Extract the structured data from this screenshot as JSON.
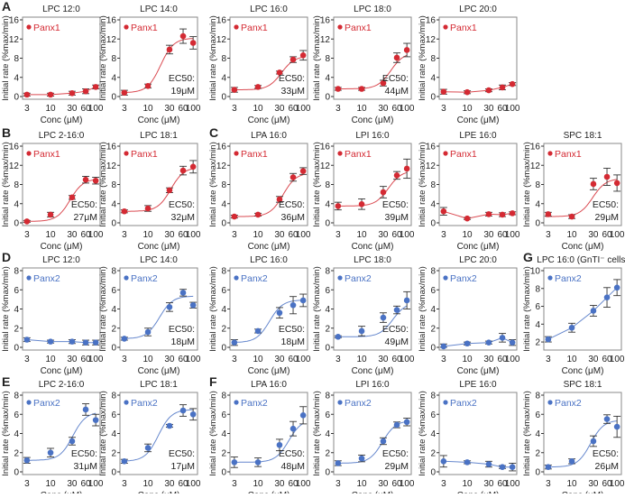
{
  "colors": {
    "panx1": "#d42a33",
    "panx2": "#4a72c4",
    "errorbar": "#333333",
    "frame": "#8a8a8a"
  },
  "chart_data": [
    {
      "type": "line",
      "label": "A",
      "title": "LPC 12:0",
      "series": "Panx1",
      "x": [
        3,
        10,
        30,
        60,
        100
      ],
      "y": [
        0.4,
        0.4,
        0.7,
        1.1,
        2.0
      ],
      "err": [
        0.3,
        0.3,
        0.4,
        0.5,
        0.4
      ],
      "ec50": null,
      "xlabel": "Conc (μM)",
      "ylabel": "Initial rate (%max/min)",
      "ylim": [
        0,
        16
      ],
      "yticks": [
        "0",
        "4",
        "8",
        "12",
        "16"
      ],
      "xticks": [
        "3",
        "10",
        "30",
        "60",
        "100"
      ],
      "xscale": "log"
    },
    {
      "type": "line",
      "title": "LPC 14:0",
      "series": "Panx1",
      "x": [
        3,
        10,
        30,
        60,
        100
      ],
      "y": [
        0.8,
        2.2,
        9.8,
        12.6,
        11.2
      ],
      "err": [
        0.5,
        0.4,
        0.9,
        1.5,
        1.3
      ],
      "ec50": [
        "EC50:",
        "19μM"
      ],
      "xlabel": "Conc (μM)",
      "ylabel": "Initial rate (%max/min)",
      "ylim": [
        0,
        16
      ],
      "yticks": [
        "0",
        "4",
        "8",
        "12",
        "16"
      ],
      "xticks": [
        "3",
        "10",
        "30",
        "60",
        "100"
      ],
      "xscale": "log"
    },
    {
      "type": "line",
      "title": "LPC 16:0",
      "series": "Panx1",
      "x": [
        3,
        10,
        30,
        60,
        100
      ],
      "y": [
        1.4,
        2.0,
        5.0,
        7.7,
        8.6
      ],
      "err": [
        0.5,
        0.3,
        0.3,
        0.6,
        1.0
      ],
      "ec50": [
        "EC50:",
        "33μM"
      ],
      "xlabel": "Conc (μM)",
      "ylabel": "Initial rate (%max/min)",
      "ylim": [
        0,
        16
      ],
      "yticks": [
        "0",
        "4",
        "8",
        "12",
        "16"
      ],
      "xticks": [
        "3",
        "10",
        "30",
        "60",
        "100"
      ],
      "xscale": "log"
    },
    {
      "type": "line",
      "title": "LPC 18:0",
      "series": "Panx1",
      "x": [
        3,
        10,
        30,
        60,
        100
      ],
      "y": [
        1.6,
        1.6,
        2.8,
        8.1,
        9.7
      ],
      "err": [
        0.3,
        0.3,
        0.6,
        1.0,
        1.4
      ],
      "ec50": [
        "EC50:",
        "44μM"
      ],
      "xlabel": "Conc (μM)",
      "ylabel": "Initial rate (%max/min)",
      "ylim": [
        0,
        16
      ],
      "yticks": [
        "0",
        "4",
        "8",
        "12",
        "16"
      ],
      "xticks": [
        "3",
        "10",
        "30",
        "60",
        "100"
      ],
      "xscale": "log"
    },
    {
      "type": "line",
      "title": "LPC 20:0",
      "series": "Panx1",
      "x": [
        3,
        10,
        30,
        60,
        100
      ],
      "y": [
        1.0,
        0.9,
        1.3,
        1.9,
        2.6
      ],
      "err": [
        0.5,
        0.3,
        0.3,
        0.5,
        0.3
      ],
      "ec50": null,
      "xlabel": "Conc (μM)",
      "ylabel": "Initial rate (%max/min)",
      "ylim": [
        0,
        16
      ],
      "yticks": [
        "0",
        "4",
        "8",
        "12",
        "16"
      ],
      "xticks": [
        "3",
        "10",
        "30",
        "60",
        "100"
      ],
      "xscale": "log"
    },
    {
      "type": "line",
      "label": "B",
      "title": "LPC 2-16:0",
      "series": "Panx1",
      "x": [
        3,
        10,
        30,
        60,
        100
      ],
      "y": [
        0.3,
        1.7,
        5.3,
        9.0,
        8.8
      ],
      "err": [
        0.2,
        0.5,
        0.4,
        0.7,
        0.7
      ],
      "ec50": [
        "EC50:",
        "27μM"
      ],
      "xlabel": "Conc (μM)",
      "ylabel": "Initial rate (%max/min)",
      "ylim": [
        0,
        16
      ],
      "yticks": [
        "0",
        "4",
        "8",
        "12",
        "16"
      ],
      "xticks": [
        "3",
        "10",
        "30",
        "60",
        "100"
      ],
      "xscale": "log"
    },
    {
      "type": "line",
      "title": "LPC 18:1",
      "series": "Panx1",
      "x": [
        3,
        10,
        30,
        60,
        100
      ],
      "y": [
        2.4,
        3.0,
        6.8,
        10.9,
        11.7
      ],
      "err": [
        0.3,
        0.6,
        0.5,
        0.9,
        1.3
      ],
      "ec50": [
        "EC50:",
        "32μM"
      ],
      "xlabel": "Conc (μM)",
      "ylabel": "Initial rate (%max/min)",
      "ylim": [
        0,
        16
      ],
      "yticks": [
        "0",
        "4",
        "8",
        "12",
        "16"
      ],
      "xticks": [
        "3",
        "10",
        "30",
        "60",
        "100"
      ],
      "xscale": "log"
    },
    {
      "type": "line",
      "label": "C",
      "title": "LPA 16:0",
      "series": "Panx1",
      "x": [
        3,
        10,
        30,
        60,
        100
      ],
      "y": [
        1.3,
        1.7,
        4.9,
        9.5,
        10.8
      ],
      "err": [
        0.3,
        0.3,
        0.6,
        0.8,
        0.7
      ],
      "ec50": [
        "EC50:",
        "36μM"
      ],
      "xlabel": "Conc (μM)",
      "ylabel": "Initial rate (%max/min)",
      "ylim": [
        0,
        16
      ],
      "yticks": [
        "0",
        "4",
        "8",
        "12",
        "16"
      ],
      "xticks": [
        "3",
        "10",
        "30",
        "60",
        "100"
      ],
      "xscale": "log"
    },
    {
      "type": "line",
      "title": "LPI 16:0",
      "series": "Panx1",
      "x": [
        3,
        10,
        30,
        60,
        100
      ],
      "y": [
        3.5,
        3.9,
        6.4,
        9.9,
        11.3
      ],
      "err": [
        0.8,
        1.1,
        1.2,
        0.8,
        2.0
      ],
      "ec50": [
        "EC50:",
        "39μM"
      ],
      "xlabel": "Conc (μM)",
      "ylabel": "Initial rate (%max/min)",
      "ylim": [
        0,
        16
      ],
      "yticks": [
        "0",
        "4",
        "8",
        "12",
        "16"
      ],
      "xticks": [
        "3",
        "10",
        "30",
        "60",
        "100"
      ],
      "xscale": "log"
    },
    {
      "type": "line",
      "title": "LPE 16:0",
      "series": "Panx1",
      "x": [
        3,
        10,
        30,
        60,
        100
      ],
      "y": [
        2.4,
        0.9,
        1.8,
        1.7,
        2.0
      ],
      "err": [
        0.8,
        0.2,
        0.4,
        0.4,
        0.3
      ],
      "ec50": null,
      "xlabel": "Conc (μM)",
      "ylabel": "Initial rate (%max/min)",
      "ylim": [
        0,
        16
      ],
      "yticks": [
        "0",
        "4",
        "8",
        "12",
        "16"
      ],
      "xticks": [
        "3",
        "10",
        "30",
        "60",
        "100"
      ],
      "xscale": "log"
    },
    {
      "type": "line",
      "title": "SPC 18:1",
      "series": "Panx1",
      "x": [
        3,
        10,
        30,
        60,
        100
      ],
      "y": [
        1.8,
        1.3,
        8.1,
        9.6,
        8.3
      ],
      "err": [
        0.4,
        0.4,
        1.2,
        1.8,
        1.7
      ],
      "ec50": [
        "EC50:",
        "29μM"
      ],
      "xlabel": "Conc (μM)",
      "ylabel": "Initial rate (%max/min)",
      "ylim": [
        0,
        16
      ],
      "yticks": [
        "0",
        "4",
        "8",
        "12",
        "16"
      ],
      "xticks": [
        "3",
        "10",
        "30",
        "60",
        "100"
      ],
      "xscale": "log"
    },
    {
      "type": "line",
      "label": "D",
      "title": "LPC 12:0",
      "series": "Panx2",
      "x": [
        3,
        10,
        30,
        60,
        100
      ],
      "y": [
        0.8,
        0.6,
        0.6,
        0.5,
        0.5
      ],
      "err": [
        0.2,
        0.15,
        0.2,
        0.25,
        0.25
      ],
      "ec50": null,
      "xlabel": "Conc (μM)",
      "ylabel": "Initial rate (%max/min)",
      "ylim": [
        0,
        8
      ],
      "yticks": [
        "0",
        "2",
        "4",
        "6",
        "8"
      ],
      "xticks": [
        "3",
        "10",
        "30",
        "60",
        "100"
      ],
      "xscale": "log"
    },
    {
      "type": "line",
      "title": "LPC 14:0",
      "series": "Panx2",
      "x": [
        3,
        10,
        30,
        60,
        100
      ],
      "y": [
        0.9,
        1.6,
        4.2,
        5.7,
        4.4
      ],
      "err": [
        0.15,
        0.4,
        0.45,
        0.35,
        0.3
      ],
      "ec50": [
        "EC50:",
        "18μM"
      ],
      "xlabel": "Conc (μM)",
      "ylabel": "Initial rate (%max/min)",
      "ylim": [
        0,
        8
      ],
      "yticks": [
        "0",
        "2",
        "4",
        "6",
        "8"
      ],
      "xticks": [
        "3",
        "10",
        "30",
        "60",
        "100"
      ],
      "xscale": "log"
    },
    {
      "type": "line",
      "title": "LPC 16:0",
      "series": "Panx2",
      "x": [
        3,
        10,
        30,
        60,
        100
      ],
      "y": [
        0.5,
        1.7,
        3.6,
        4.4,
        4.9
      ],
      "err": [
        0.3,
        0.2,
        0.55,
        0.9,
        0.65
      ],
      "ec50": [
        "EC50:",
        "18μM"
      ],
      "xlabel": "Conc (μM)",
      "ylabel": "Initial rate (%max/min)",
      "ylim": [
        0,
        8
      ],
      "yticks": [
        "0",
        "2",
        "4",
        "6",
        "8"
      ],
      "xticks": [
        "3",
        "10",
        "30",
        "60",
        "100"
      ],
      "xscale": "log"
    },
    {
      "type": "line",
      "title": "LPC 18:0",
      "series": "Panx2",
      "x": [
        3,
        10,
        30,
        60,
        100
      ],
      "y": [
        1.1,
        1.7,
        3.1,
        3.9,
        4.9
      ],
      "err": [
        0.1,
        0.5,
        0.5,
        0.4,
        0.9
      ],
      "ec50": [
        "EC50:",
        "49μM"
      ],
      "xlabel": "Conc (μM)",
      "ylabel": "Initial rate (%max/min)",
      "ylim": [
        0,
        8
      ],
      "yticks": [
        "0",
        "2",
        "4",
        "6",
        "8"
      ],
      "xticks": [
        "3",
        "10",
        "30",
        "60",
        "100"
      ],
      "xscale": "log"
    },
    {
      "type": "line",
      "title": "LPC 20:0",
      "series": "Panx2",
      "x": [
        3,
        10,
        30,
        60,
        100
      ],
      "y": [
        0.1,
        0.4,
        0.5,
        1.0,
        0.5
      ],
      "err": [
        0.25,
        0.15,
        0.15,
        0.45,
        0.3
      ],
      "ec50": null,
      "xlabel": "Conc (μM)",
      "ylabel": "Initial rate (%max/min)",
      "ylim": [
        0,
        8
      ],
      "yticks": [
        "0",
        "2",
        "4",
        "6",
        "8"
      ],
      "xticks": [
        "3",
        "10",
        "30",
        "60",
        "100"
      ],
      "xscale": "log"
    },
    {
      "type": "line",
      "label": "G",
      "title": "LPC 16:0 (GnTI⁻ cells)",
      "series": "Panx2",
      "x": [
        3,
        10,
        30,
        60,
        100
      ],
      "y": [
        2.3,
        3.6,
        5.5,
        7.0,
        8.1
      ],
      "err": [
        0.3,
        0.5,
        0.6,
        1.1,
        0.9
      ],
      "ec50": null,
      "xlabel": "Conc (μM)",
      "ylabel": "Initial rate (%max/min)",
      "ylim": [
        1.4,
        10
      ],
      "yticks": [
        "2",
        "4",
        "6",
        "8",
        "10"
      ],
      "xticks": [
        "3",
        "10",
        "30",
        "60",
        "100"
      ],
      "xscale": "log"
    },
    {
      "type": "line",
      "label": "E",
      "title": "LPC 2-16:0",
      "series": "Panx2",
      "x": [
        3,
        10,
        30,
        60,
        100
      ],
      "y": [
        1.2,
        2.0,
        3.2,
        6.5,
        5.4
      ],
      "err": [
        0.3,
        0.45,
        0.4,
        0.6,
        0.6
      ],
      "ec50": [
        "EC50:",
        "31μM"
      ],
      "xlabel": "Conc (μM)",
      "ylabel": "Initial rate (%max/min)",
      "ylim": [
        0,
        8
      ],
      "yticks": [
        "0",
        "2",
        "4",
        "6",
        "8"
      ],
      "xticks": [
        "3",
        "10",
        "30",
        "60",
        "100"
      ],
      "xscale": "log"
    },
    {
      "type": "line",
      "title": "LPC 18:1",
      "series": "Panx2",
      "x": [
        3,
        10,
        30,
        60,
        100
      ],
      "y": [
        1.1,
        2.5,
        4.8,
        6.4,
        6.0
      ],
      "err": [
        0.2,
        0.4,
        0.15,
        0.6,
        0.6
      ],
      "ec50": [
        "EC50:",
        "17μM"
      ],
      "xlabel": "Conc (μM)",
      "ylabel": "Initial rate (%max/min)",
      "ylim": [
        0,
        8
      ],
      "yticks": [
        "0",
        "2",
        "4",
        "6",
        "8"
      ],
      "xticks": [
        "3",
        "10",
        "30",
        "60",
        "100"
      ],
      "xscale": "log"
    },
    {
      "type": "line",
      "label": "F",
      "title": "LPA 16:0",
      "series": "Panx2",
      "x": [
        3,
        10,
        30,
        60,
        100
      ],
      "y": [
        1.0,
        1.0,
        2.8,
        4.5,
        5.9
      ],
      "err": [
        0.55,
        0.45,
        0.6,
        0.75,
        0.9
      ],
      "ec50": [
        "EC50:",
        "48μM"
      ],
      "xlabel": "Conc (μM)",
      "ylabel": "Initial rate (%max/min)",
      "ylim": [
        0,
        8
      ],
      "yticks": [
        "0",
        "2",
        "4",
        "6",
        "8"
      ],
      "xticks": [
        "3",
        "10",
        "30",
        "60",
        "100"
      ],
      "xscale": "log"
    },
    {
      "type": "line",
      "title": "LPI 16:0",
      "series": "Panx2",
      "x": [
        3,
        10,
        30,
        60,
        100
      ],
      "y": [
        0.9,
        1.4,
        3.2,
        4.9,
        5.2
      ],
      "err": [
        0.25,
        0.35,
        0.35,
        0.3,
        0.4
      ],
      "ec50": [
        "EC50:",
        "29μM"
      ],
      "xlabel": "Conc (μM)",
      "ylabel": "Initial rate (%max/min)",
      "ylim": [
        0,
        8
      ],
      "yticks": [
        "0",
        "2",
        "4",
        "6",
        "8"
      ],
      "xticks": [
        "3",
        "10",
        "30",
        "60",
        "100"
      ],
      "xscale": "log"
    },
    {
      "type": "line",
      "title": "LPE 16:0",
      "series": "Panx2",
      "x": [
        3,
        10,
        30,
        60,
        100
      ],
      "y": [
        1.1,
        1.0,
        0.8,
        0.5,
        0.5
      ],
      "err": [
        0.6,
        0.15,
        0.3,
        0.15,
        0.4
      ],
      "ec50": null,
      "xlabel": "Conc (μM)",
      "ylabel": "Initial rate (%max/min)",
      "ylim": [
        0,
        8
      ],
      "yticks": [
        "0",
        "2",
        "4",
        "6",
        "8"
      ],
      "xticks": [
        "3",
        "10",
        "30",
        "60",
        "100"
      ],
      "xscale": "log"
    },
    {
      "type": "line",
      "title": "SPC 18:1",
      "series": "Panx2",
      "x": [
        3,
        10,
        30,
        60,
        100
      ],
      "y": [
        0.5,
        1.1,
        3.2,
        5.5,
        4.7
      ],
      "err": [
        0.2,
        0.25,
        0.55,
        0.45,
        1.1
      ],
      "ec50": [
        "EC50:",
        "26μM"
      ],
      "xlabel": "Conc (μM)",
      "ylabel": "Initial rate (%max/min)",
      "ylim": [
        0,
        8
      ],
      "yticks": [
        "0",
        "2",
        "4",
        "6",
        "8"
      ],
      "xticks": [
        "3",
        "10",
        "30",
        "60",
        "100"
      ],
      "xscale": "log"
    }
  ]
}
